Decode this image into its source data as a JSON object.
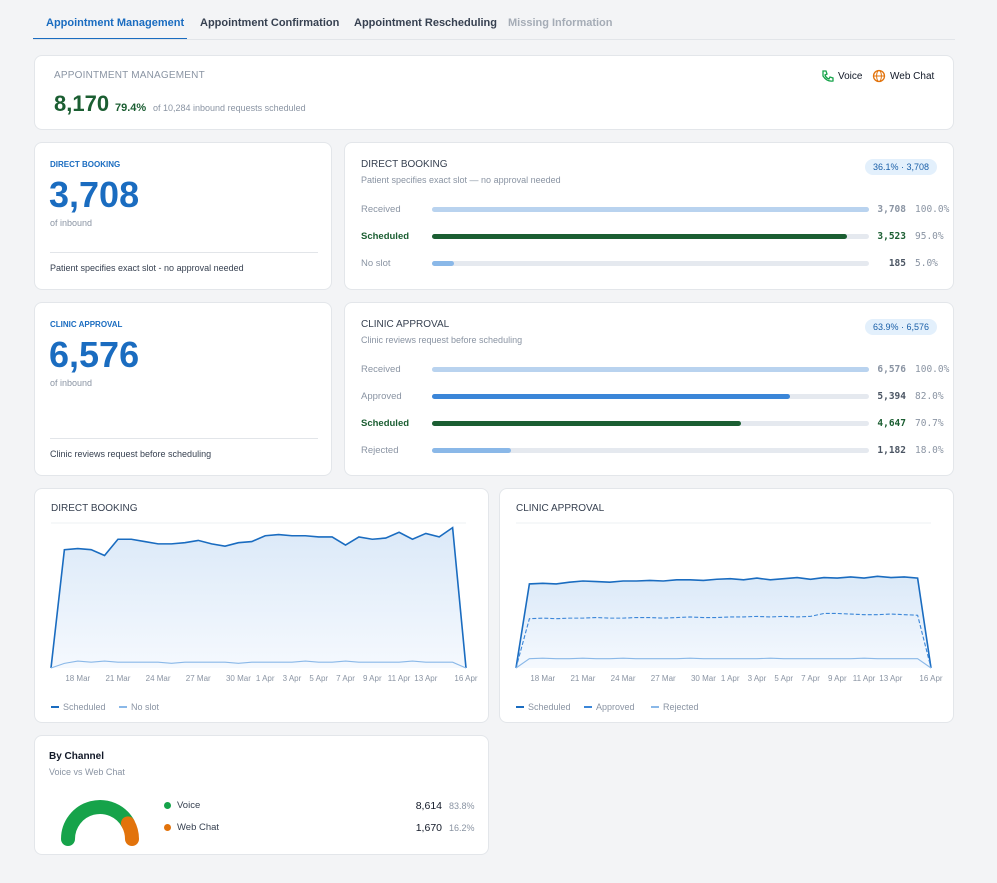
{
  "tabs": {
    "items": [
      "Appointment Management",
      "Appointment Confirmation",
      "Appointment Rescheduling",
      "Missing Information"
    ],
    "active": 0
  },
  "summary": {
    "title": "APPOINTMENT MANAGEMENT",
    "value": "8,170",
    "percent": "79.4%",
    "note": "of 10,284 inbound requests scheduled"
  },
  "kpis": [
    {
      "label": "DIRECT BOOKING",
      "value": "3,708",
      "sub": "of inbound",
      "description": "Patient specifies exact slot - no approval needed"
    },
    {
      "label": "CLINIC APPROVAL",
      "value": "6,576",
      "sub": "of inbound",
      "description": "Clinic reviews request before scheduling"
    }
  ],
  "funnels": [
    {
      "title": "DIRECT BOOKING",
      "subtitle": "Patient specifies exact slot — no approval needed",
      "badge": "36.1% · 3,708",
      "rows": [
        {
          "label": "Received",
          "count": "3,708",
          "share": {
            "value": 100,
            "label": "100.0%"
          },
          "color": "#b9d3ef"
        },
        {
          "label": "Scheduled",
          "count": "3,523",
          "share": {
            "value": 95,
            "label": "95.0%"
          },
          "color": "#1b5e32"
        },
        {
          "label": "No slot",
          "count": "185",
          "share": {
            "value": 5,
            "label": "5.0%"
          },
          "color": "#8ab8e8"
        }
      ]
    },
    {
      "title": "CLINIC APPROVAL",
      "subtitle": "Clinic reviews request before scheduling",
      "badge": "63.9% · 6,576",
      "rows": [
        {
          "label": "Received",
          "count": "6,576",
          "share": {
            "value": 100,
            "label": "100.0%"
          },
          "color": "#b9d3ef"
        },
        {
          "label": "Approved",
          "count": "5,394",
          "share": {
            "value": 82,
            "label": "82.0%"
          },
          "color": "#3b86d8"
        },
        {
          "label": "Scheduled",
          "count": "4,647",
          "share": {
            "value": 70.7,
            "label": "70.7%"
          },
          "color": "#1b5e32"
        },
        {
          "label": "Rejected",
          "count": "1,182",
          "share": {
            "value": 18,
            "label": "18.0%"
          },
          "color": "#8ab8e8"
        }
      ]
    }
  ],
  "charts": [
    {
      "type": "line",
      "title": "DIRECT BOOKING",
      "ylim": [
        0,
        125
      ],
      "categories": [
        null,
        null,
        "18 Mar",
        null,
        null,
        "21 Mar",
        null,
        null,
        "24 Mar",
        null,
        null,
        "27 Mar",
        null,
        null,
        "30 Mar",
        null,
        "1 Apr",
        null,
        "3 Apr",
        null,
        "5 Apr",
        null,
        "7 Apr",
        null,
        "9 Apr",
        null,
        "11 Apr",
        null,
        "13 Apr",
        null,
        null,
        "16 Apr"
      ],
      "series": [
        {
          "name": "Scheduled",
          "color": "#1a6cc0",
          "values": [
            0,
            102,
            103,
            102,
            97,
            111,
            111,
            109,
            107,
            107,
            108,
            110,
            107,
            105,
            108,
            109,
            114,
            115,
            114,
            114,
            113,
            113,
            106,
            113,
            111,
            112,
            117,
            111,
            116,
            113,
            121,
            0
          ]
        },
        {
          "name": "No slot",
          "color": "#8ab8e8",
          "values": [
            0,
            4,
            6,
            5,
            6,
            5,
            5,
            5,
            5,
            4,
            5,
            5,
            5,
            5,
            4,
            5,
            5,
            5,
            5,
            6,
            5,
            5,
            6,
            5,
            5,
            5,
            5,
            6,
            5,
            5,
            5,
            0
          ]
        }
      ]
    },
    {
      "type": "line",
      "title": "CLINIC APPROVAL",
      "ylim": [
        0,
        250
      ],
      "categories": [
        null,
        null,
        "18 Mar",
        null,
        null,
        "21 Mar",
        null,
        null,
        "24 Mar",
        null,
        null,
        "27 Mar",
        null,
        null,
        "30 Mar",
        null,
        "1 Apr",
        null,
        "3 Apr",
        null,
        "5 Apr",
        null,
        "7 Apr",
        null,
        "9 Apr",
        null,
        "11 Apr",
        null,
        "13 Apr",
        null,
        null,
        "16 Apr"
      ],
      "series": [
        {
          "name": "Scheduled",
          "color": "#1a6cc0",
          "values": [
            0,
            145,
            146,
            145,
            148,
            150,
            149,
            148,
            150,
            150,
            151,
            150,
            152,
            152,
            151,
            153,
            154,
            152,
            155,
            152,
            154,
            156,
            153,
            156,
            155,
            157,
            155,
            158,
            156,
            157,
            155,
            0
          ]
        },
        {
          "name": "Approved",
          "color": "#3b86d8",
          "dashed": true,
          "values": [
            0,
            85,
            86,
            85,
            86,
            86,
            87,
            86,
            86,
            87,
            87,
            86,
            87,
            88,
            87,
            87,
            88,
            88,
            89,
            88,
            89,
            88,
            89,
            94,
            94,
            93,
            92,
            92,
            93,
            92,
            91,
            0
          ]
        },
        {
          "name": "Rejected",
          "color": "#8ab8e8",
          "values": [
            0,
            16,
            17,
            16,
            16,
            17,
            16,
            16,
            17,
            16,
            16,
            16,
            16,
            17,
            16,
            16,
            16,
            16,
            16,
            17,
            16,
            16,
            16,
            16,
            16,
            16,
            17,
            16,
            16,
            16,
            16,
            0
          ]
        }
      ]
    }
  ],
  "channels": {
    "title": "By Channel",
    "subtitle": "Voice vs Web Chat",
    "rows": [
      {
        "name": "Voice",
        "color": "#16a34a",
        "count": "8,614",
        "share": {
          "value": 83.8,
          "label": "83.8%"
        }
      },
      {
        "name": "Web Chat",
        "color": "#e2730c",
        "count": "1,670",
        "share": {
          "value": 16.2,
          "label": "16.2%"
        }
      }
    ]
  }
}
